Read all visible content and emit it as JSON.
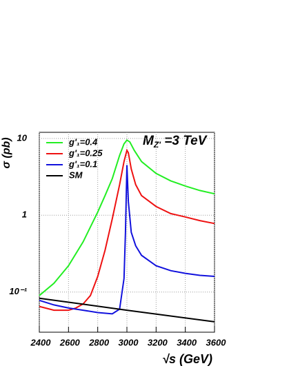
{
  "chart_data": {
    "type": "line",
    "ylabel": "σ (pb)",
    "xlabel": "√s (GeV)",
    "annotation": {
      "main": "M",
      "sub": "Z'",
      "rest": " =3 TeV"
    },
    "xlim": [
      2400,
      3600
    ],
    "xticks": [
      2400,
      2600,
      2800,
      3000,
      3200,
      3400,
      3600
    ],
    "ylim": [
      0.03,
      12
    ],
    "log_y": true,
    "yticks": [
      {
        "value": 0.1,
        "label": "10⁻¹"
      },
      1,
      10
    ],
    "grid": true,
    "legend": "upper left",
    "series": [
      {
        "name": "g'₁=0.4",
        "color": "#22ee22",
        "x": [
          2400,
          2500,
          2600,
          2700,
          2800,
          2850,
          2900,
          2950,
          2980,
          3000,
          3020,
          3050,
          3100,
          3200,
          3300,
          3400,
          3500,
          3600
        ],
        "values": [
          0.09,
          0.13,
          0.22,
          0.45,
          1.1,
          1.8,
          3,
          6,
          8.5,
          9.5,
          9,
          7,
          5,
          3.5,
          2.8,
          2.4,
          2.1,
          1.9
        ]
      },
      {
        "name": "g'₁=0.25",
        "color": "#ee1111",
        "x": [
          2400,
          2500,
          2600,
          2650,
          2700,
          2750,
          2800,
          2850,
          2900,
          2950,
          2980,
          3000,
          3010,
          3030,
          3060,
          3100,
          3200,
          3300,
          3400,
          3500,
          3600
        ],
        "values": [
          0.065,
          0.058,
          0.058,
          0.062,
          0.07,
          0.09,
          0.16,
          0.35,
          0.9,
          2.5,
          5,
          7,
          6.5,
          4,
          2.5,
          1.8,
          1.3,
          1.05,
          0.95,
          0.85,
          0.78
        ]
      },
      {
        "name": "g'₁=0.1",
        "color": "#1111dd",
        "x": [
          2400,
          2500,
          2600,
          2700,
          2800,
          2900,
          2950,
          2980,
          2990,
          3000,
          3010,
          3030,
          3060,
          3100,
          3200,
          3300,
          3400,
          3500,
          3600
        ],
        "values": [
          0.078,
          0.068,
          0.062,
          0.058,
          0.054,
          0.052,
          0.06,
          0.15,
          0.6,
          4.5,
          1.5,
          0.6,
          0.4,
          0.3,
          0.22,
          0.19,
          0.175,
          0.165,
          0.16
        ]
      },
      {
        "name": "SM",
        "color": "#000000",
        "x": [
          2400,
          3000,
          3600
        ],
        "values": [
          0.083,
          0.058,
          0.041
        ]
      }
    ]
  }
}
